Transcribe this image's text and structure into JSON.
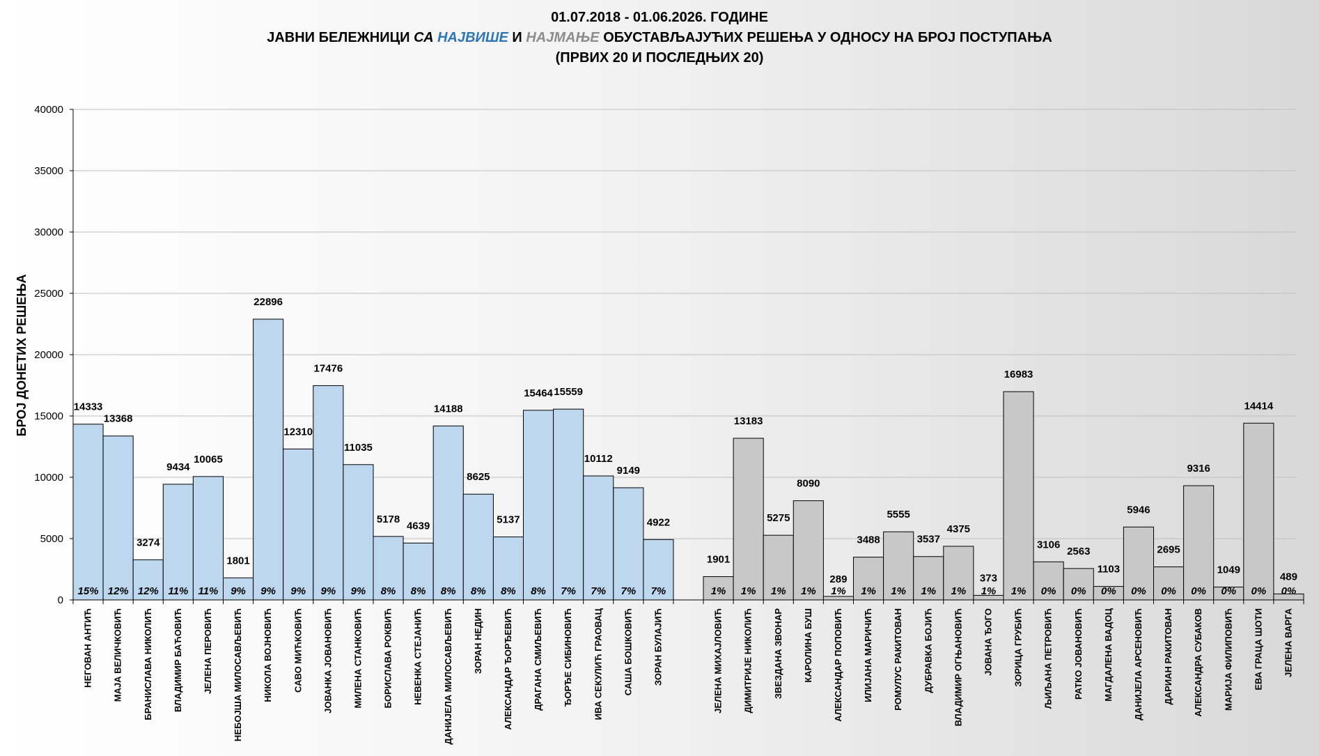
{
  "title": {
    "line1": "01.07.2018 - 01.06.2026. ГОДИНЕ",
    "line2_parts": [
      {
        "text": "ЈАВНИ БЕЛЕЖНИЦИ ",
        "style": "normal"
      },
      {
        "text": "СА ",
        "style": "italic"
      },
      {
        "text": "НАЈВИШЕ",
        "style": "blue"
      },
      {
        "text": " И ",
        "style": "normal"
      },
      {
        "text": "НАЈМАЊЕ",
        "style": "gray"
      },
      {
        "text": " ОБУСТАВЉАЈУЋИХ РЕШЕЊА У ОДНОСУ НА БРОЈ ПОСТУПАЊА",
        "style": "normal"
      }
    ],
    "line3": "(ПРВИХ 20 И ПОСЛЕДЊИХ 20)"
  },
  "chart_data": {
    "type": "bar",
    "title": "01.07.2018 - 01.06.2026. ГОДИНЕ — ЈАВНИ БЕЛЕЖНИЦИ СА НАЈВИШЕ И НАЈМАЊЕ ОБУСТАВЉАЈУЋИХ РЕШЕЊА У ОДНОСУ НА БРОЈ ПОСТУПАЊА (ПРВИХ 20 И ПОСЛЕДЊИХ 20)",
    "ylabel": "БРОЈ ДОНЕТИХ РЕШЕЊА",
    "xlabel": "",
    "ylim": [
      0,
      40000
    ],
    "yticks": [
      0,
      5000,
      10000,
      15000,
      20000,
      25000,
      30000,
      35000,
      40000
    ],
    "grid": true,
    "legend": "none",
    "colors": {
      "top": "#bdd7ee",
      "bottom": "#c8c8c8",
      "edge": "#000000",
      "grid": "#bfbfbf"
    },
    "groups": [
      {
        "group": "top",
        "bars": [
          {
            "name": "НЕГОВАН АНТИЋ",
            "value": 14333,
            "pct": "15%"
          },
          {
            "name": "МАЈА ВЕЛИЧКОВИЋ",
            "value": 13368,
            "pct": "12%"
          },
          {
            "name": "БРАНИСЛАВА НИКОЛИЋ",
            "value": 3274,
            "pct": "12%"
          },
          {
            "name": "ВЛАДИМИР БАЋОВИЋ",
            "value": 9434,
            "pct": "11%"
          },
          {
            "name": "ЈЕЛЕНА ПЕРОВИЋ",
            "value": 10065,
            "pct": "11%"
          },
          {
            "name": "НЕБОЈША МИЛОСАВЉЕВИЋ",
            "value": 1801,
            "pct": "9%"
          },
          {
            "name": "НИКОЛА ВОЈНОВИЋ",
            "value": 22896,
            "pct": "9%"
          },
          {
            "name": "САВО МИЋКОВИЋ",
            "value": 12310,
            "pct": "9%"
          },
          {
            "name": "ЈОВАНКА ЈОВАНОВИЋ",
            "value": 17476,
            "pct": "9%"
          },
          {
            "name": "МИЛЕНА СТАНКОВИЋ",
            "value": 11035,
            "pct": "9%"
          },
          {
            "name": "БОРИСЛАВА РОКВИЋ",
            "value": 5178,
            "pct": "8%"
          },
          {
            "name": "НЕВЕНКА СТЕЈАНИЋ",
            "value": 4639,
            "pct": "8%"
          },
          {
            "name": "ДАНИЈЕЛА МИЛОСАВЉЕВИЋ",
            "value": 14188,
            "pct": "8%"
          },
          {
            "name": "ЗОРАН НЕДИН",
            "value": 8625,
            "pct": "8%"
          },
          {
            "name": "АЛЕКСАНДАР ЂОРЂЕВИЋ",
            "value": 5137,
            "pct": "8%"
          },
          {
            "name": "ДРАГАНА СМИЉЕВИЋ",
            "value": 15464,
            "pct": "8%"
          },
          {
            "name": "ЂОРЂЕ СИБИНОВИЋ",
            "value": 15559,
            "pct": "7%"
          },
          {
            "name": "ИВА СЕКУЛИЋ ГРАОВАЦ",
            "value": 10112,
            "pct": "7%"
          },
          {
            "name": "САША БОШКОВИЋ",
            "value": 9149,
            "pct": "7%"
          },
          {
            "name": "ЗОРАН БУЛАЈИЋ",
            "value": 4922,
            "pct": "7%"
          }
        ]
      },
      {
        "group": "bottom",
        "bars": [
          {
            "name": "ЈЕЛЕНА МИХАЈЛОВИЋ",
            "value": 1901,
            "pct": "1%"
          },
          {
            "name": "ДИМИТРИЈЕ НИКОЛИЋ",
            "value": 13183,
            "pct": "1%"
          },
          {
            "name": "ЗВЕЗДАНА ЗВОНАР",
            "value": 5275,
            "pct": "1%"
          },
          {
            "name": "КАРОЛИНА БУШ",
            "value": 8090,
            "pct": "1%"
          },
          {
            "name": "АЛЕКСАНДАР ПОПОВИЋ",
            "value": 289,
            "pct": "1%"
          },
          {
            "name": "ИЛИЈАНА МАРИЧИЋ",
            "value": 3488,
            "pct": "1%"
          },
          {
            "name": "РОМУЛУС РАКИТОВАН",
            "value": 5555,
            "pct": "1%"
          },
          {
            "name": "ДУБРАВКА БОЈИЋ",
            "value": 3537,
            "pct": "1%"
          },
          {
            "name": "ВЛАДИМИР ОГЊАНОВИЋ",
            "value": 4375,
            "pct": "1%"
          },
          {
            "name": "ЈОВАНА ЂОГО",
            "value": 373,
            "pct": "1%"
          },
          {
            "name": "ЗОРИЦА ГРУБИЋ",
            "value": 16983,
            "pct": "1%"
          },
          {
            "name": "ЉИЉАНА ПЕТРОВИЋ",
            "value": 3106,
            "pct": "0%"
          },
          {
            "name": "РАТКО ЈОВАНОВИЋ",
            "value": 2563,
            "pct": "0%"
          },
          {
            "name": "МАГДАЛЕНА ВАДОЦ",
            "value": 1103,
            "pct": "0%"
          },
          {
            "name": "ДАНИЈЕЛА АРСЕНОВИЋ",
            "value": 5946,
            "pct": "0%"
          },
          {
            "name": "ДАРИАН РАКИТОВАН",
            "value": 2695,
            "pct": "0%"
          },
          {
            "name": "АЛЕКСАНДРА СУБАКОВ",
            "value": 9316,
            "pct": "0%"
          },
          {
            "name": "МАРИЈА ФИЛИПОВИЋ",
            "value": 1049,
            "pct": "0%"
          },
          {
            "name": "ЕВА ГРАЦА ШОТИ",
            "value": 14414,
            "pct": "0%"
          },
          {
            "name": "ЈЕЛЕНА ВАРГА",
            "value": 489,
            "pct": "0%"
          }
        ]
      }
    ]
  }
}
